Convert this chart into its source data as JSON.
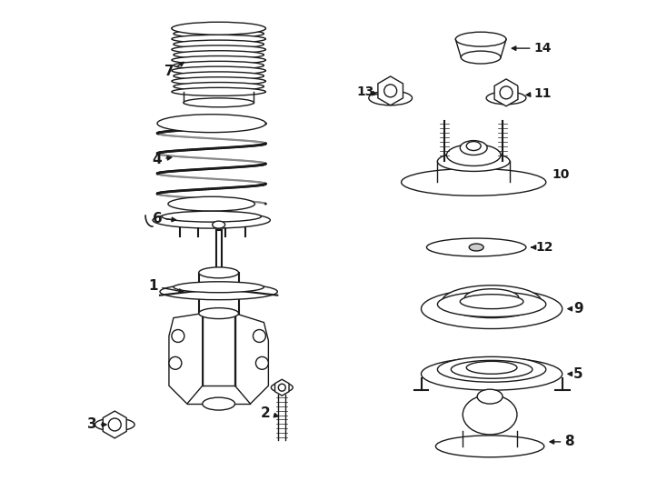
{
  "bg_color": "#ffffff",
  "line_color": "#1a1a1a",
  "lw": 1.0,
  "fig_w": 7.34,
  "fig_h": 5.4,
  "dpi": 100
}
